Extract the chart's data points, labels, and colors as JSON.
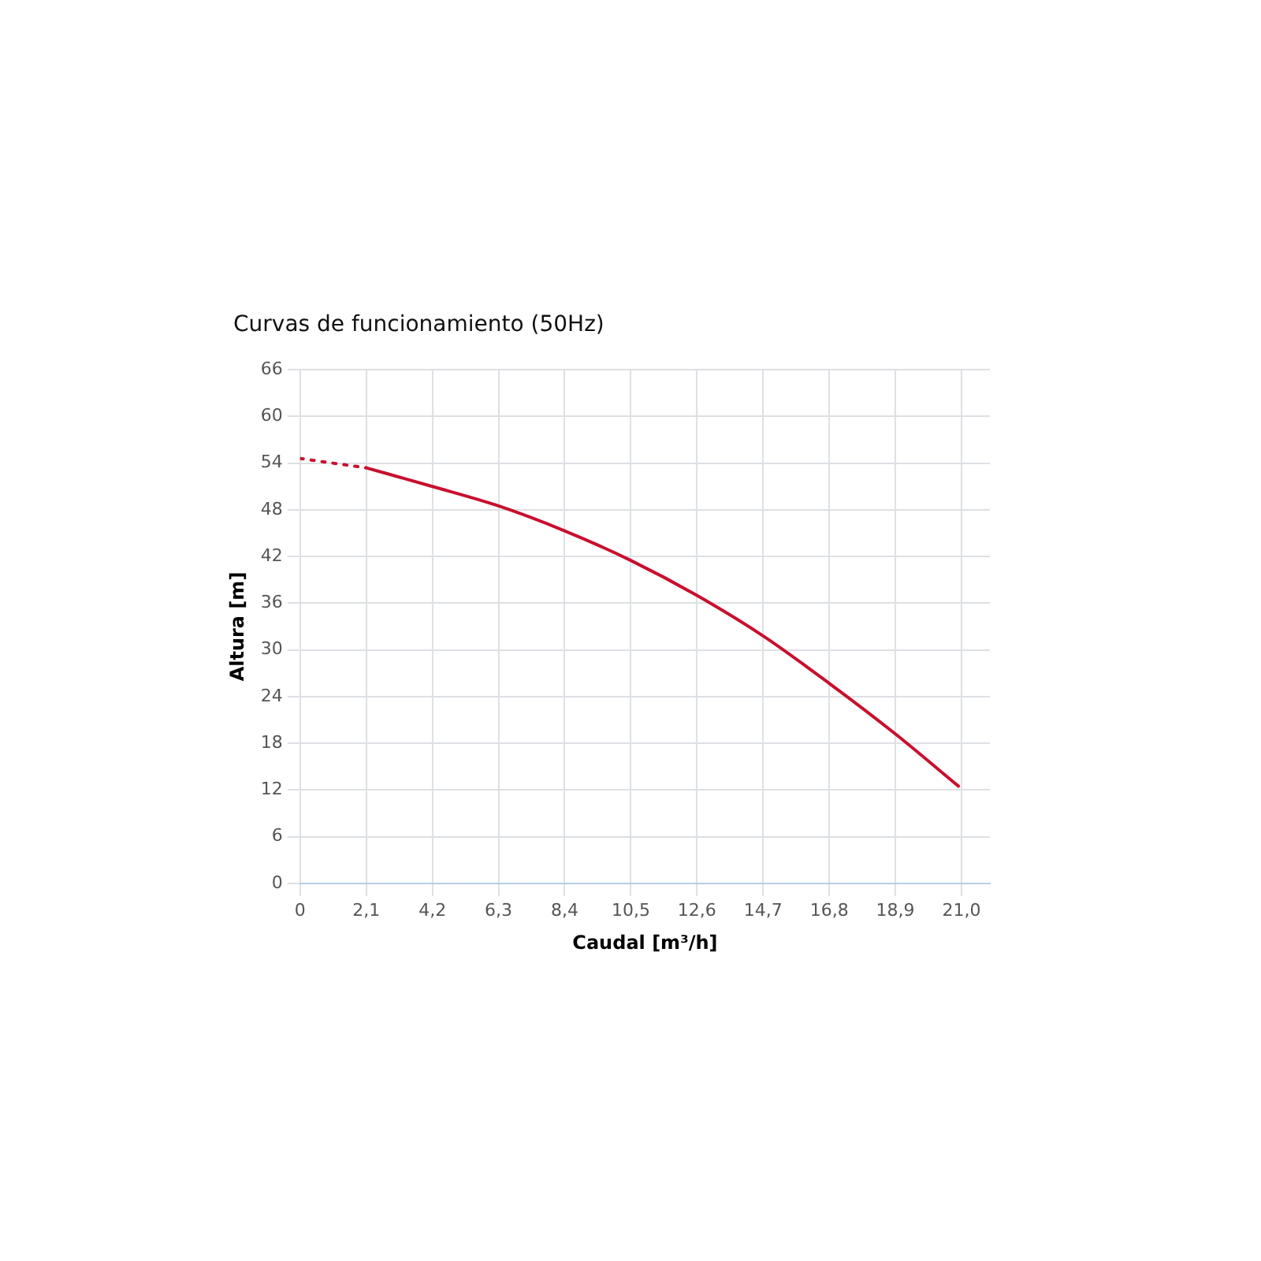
{
  "chart_data": {
    "type": "line",
    "title": "Curvas de funcionamiento (50Hz)",
    "xlabel": "Caudal [m³/h]",
    "ylabel": "Altura [m]",
    "xlim": [
      0,
      21.9
    ],
    "xticks": [
      {
        "value": 0,
        "label": "0"
      },
      {
        "value": 2.1,
        "label": "2,1"
      },
      {
        "value": 4.2,
        "label": "4,2"
      },
      {
        "value": 6.3,
        "label": "6,3"
      },
      {
        "value": 8.4,
        "label": "8,4"
      },
      {
        "value": 10.5,
        "label": "10,5"
      },
      {
        "value": 12.6,
        "label": "12,6"
      },
      {
        "value": 14.7,
        "label": "14,7"
      },
      {
        "value": 16.8,
        "label": "16,8"
      },
      {
        "value": 18.9,
        "label": "18,9"
      },
      {
        "value": 21,
        "label": "21,0"
      }
    ],
    "ylim": [
      0,
      66
    ],
    "yticks": [
      0,
      6,
      12,
      18,
      24,
      30,
      36,
      42,
      48,
      54,
      60,
      66
    ],
    "grid": true,
    "legend": false,
    "marker": "none",
    "series": [
      {
        "color": "#c8102e",
        "line_style": "dotted",
        "x": [
          0,
          2.1
        ],
        "values": [
          54.6,
          53.4
        ]
      },
      {
        "color": "#c8102e",
        "line_style": "solid",
        "x": [
          2.1,
          4.2,
          6.3,
          8.4,
          10.5,
          12.6,
          14.7,
          16.8,
          18.9,
          20.9
        ],
        "values": [
          53.4,
          51.0,
          48.5,
          45.3,
          41.5,
          37.0,
          31.8,
          25.7,
          19.2,
          12.5
        ]
      }
    ]
  }
}
